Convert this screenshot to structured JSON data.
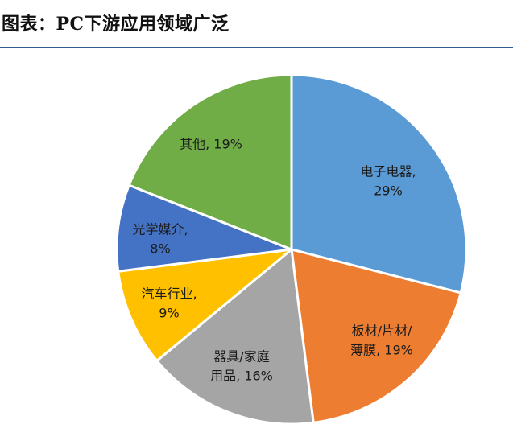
{
  "title": "图表：PC下游应用领域广泛",
  "chart_data": {
    "type": "pie",
    "title": "",
    "slices": [
      {
        "label": "电子电器",
        "value": 29,
        "display": "29%",
        "color": "#5b9bd5"
      },
      {
        "label": "板材/片材/薄膜",
        "value": 19,
        "display": "19%",
        "color": "#ed7d31"
      },
      {
        "label": "器具/家庭用品",
        "value": 16,
        "display": "16%",
        "color": "#a5a5a5"
      },
      {
        "label": "汽车行业",
        "value": 9,
        "display": "9%",
        "color": "#ffc000"
      },
      {
        "label": "光学媒介",
        "value": 8,
        "display": "8%",
        "color": "#4472c4"
      },
      {
        "label": "其他",
        "value": 19,
        "display": "19%",
        "color": "#70ad47"
      }
    ],
    "label_lines": [
      [
        "电子电器,",
        "29%"
      ],
      [
        "板材/片材/",
        "薄膜, 19%"
      ],
      [
        "器具/家庭",
        "用品, 16%"
      ],
      [
        "汽车行业,",
        "9%"
      ],
      [
        "光学媒介,",
        "8%"
      ],
      [
        "其他, 19%"
      ]
    ],
    "start_angle_deg": 0,
    "direction": "clockwise",
    "legend": "none"
  }
}
